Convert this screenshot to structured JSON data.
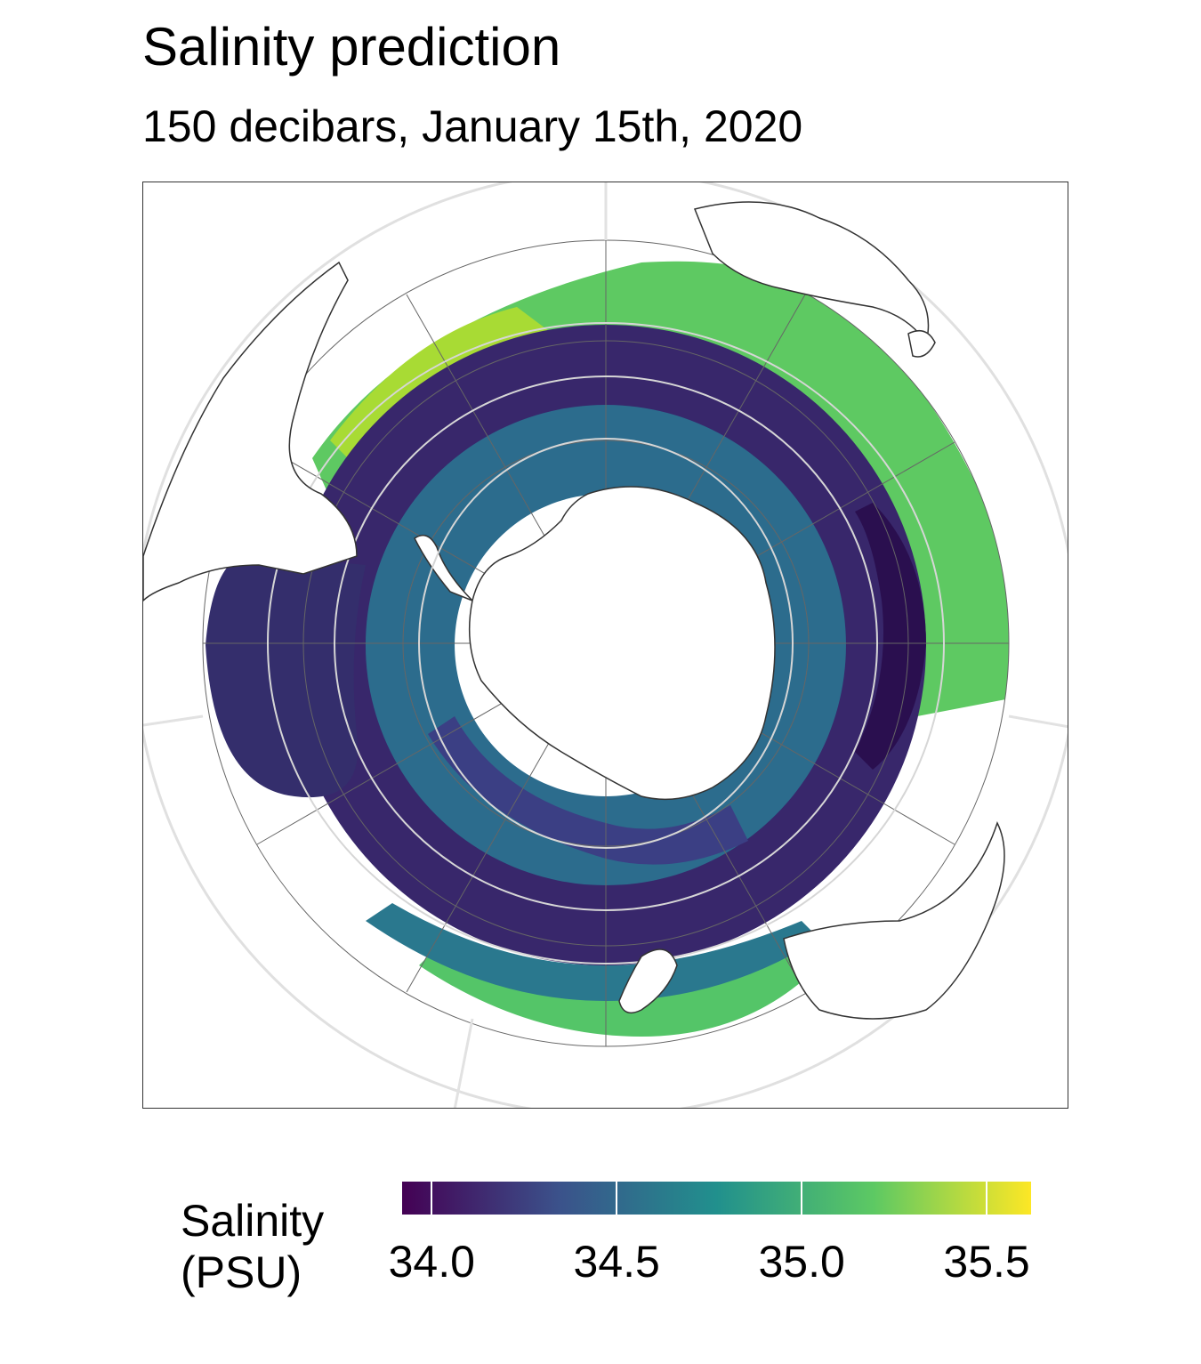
{
  "title": "Salinity prediction",
  "subtitle": "150 decibars, January 15th, 2020",
  "legend": {
    "title_line1": "Salinity",
    "title_line2": "(PSU)",
    "min": 33.92,
    "max": 35.62,
    "ticks": [
      {
        "value": 34.0,
        "label": "34.0"
      },
      {
        "value": 34.5,
        "label": "34.5"
      },
      {
        "value": 35.0,
        "label": "35.0"
      },
      {
        "value": 35.5,
        "label": "35.5"
      }
    ],
    "colormap": "viridis",
    "colors": [
      "#440154",
      "#3b528b",
      "#21908d",
      "#5dc963",
      "#fde725"
    ]
  },
  "map": {
    "projection": "south polar stereographic",
    "land_color": "#ffffff",
    "coastline_color": "#333333",
    "front_color": "#d9d9d9",
    "graticule_color": "#555555"
  }
}
